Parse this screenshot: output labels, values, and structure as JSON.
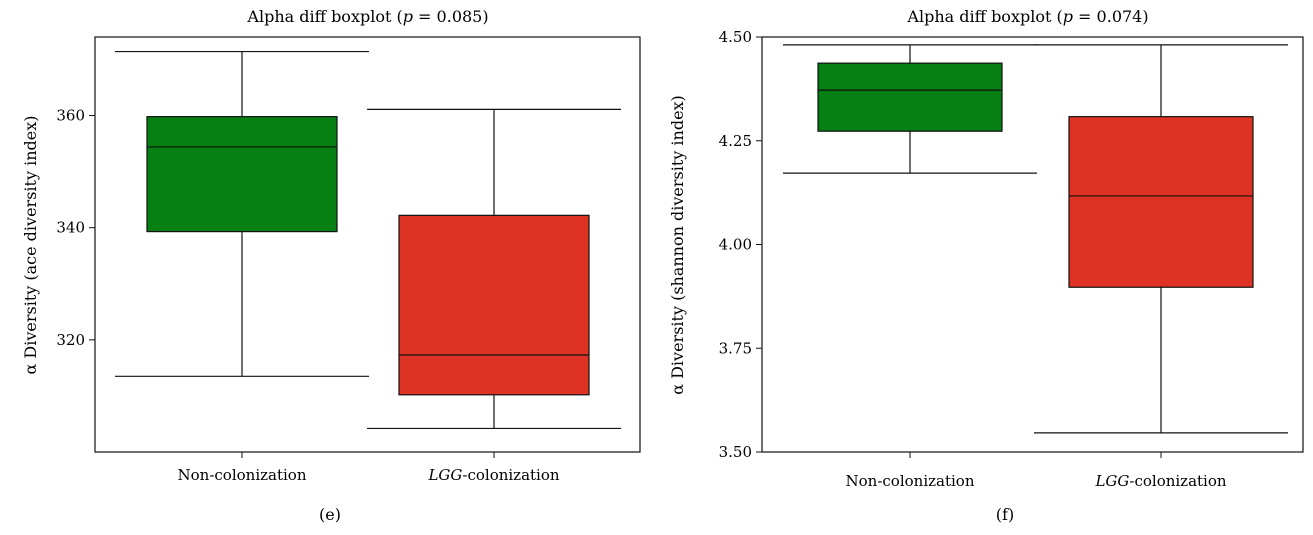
{
  "chart_data": [
    {
      "type": "box",
      "panel_label": "(e)",
      "title_prefix": "Alpha diff boxplot (",
      "title_var": "p",
      "title_suffix": " = 0.085)",
      "ylabel": "α Diversity (ace diversity index)",
      "ylim": [
        300,
        374
      ],
      "yticks": [
        320,
        340,
        360
      ],
      "categories": [
        {
          "label": "Non-colonization",
          "italic_part": "",
          "rest": "Non-colonization",
          "color": "#068012",
          "whisker_low": 313.5,
          "q1": 339.3,
          "median": 354.4,
          "q3": 359.8,
          "whisker_high": 371.4
        },
        {
          "label": "LGG-colonization",
          "italic_part": "LGG",
          "rest": "-colonization",
          "color": "#de3324",
          "whisker_low": 304.2,
          "q1": 310.2,
          "median": 317.3,
          "q3": 342.2,
          "whisker_high": 361.1
        }
      ]
    },
    {
      "type": "box",
      "panel_label": "(f)",
      "title_prefix": "Alpha diff boxplot (",
      "title_var": "p",
      "title_suffix": " = 0.074)",
      "ylabel": "α Diversity (shannon diversity index)",
      "ylim": [
        3.5,
        4.5
      ],
      "yticks": [
        3.5,
        3.75,
        4.0,
        4.25,
        4.5
      ],
      "ytick_labels": [
        "3.50",
        "3.75",
        "4.00",
        "4.25",
        "4.50"
      ],
      "categories": [
        {
          "label": "Non-colonization",
          "italic_part": "",
          "rest": "Non-colonization",
          "color": "#068012",
          "whisker_low": 4.172,
          "q1": 4.273,
          "median": 4.372,
          "q3": 4.437,
          "whisker_high": 4.481
        },
        {
          "label": "LGG-colonization",
          "italic_part": "LGG",
          "rest": "-colonization",
          "color": "#de3324",
          "whisker_low": 3.546,
          "q1": 3.897,
          "median": 4.117,
          "q3": 4.308,
          "whisker_high": 4.481
        }
      ]
    }
  ]
}
